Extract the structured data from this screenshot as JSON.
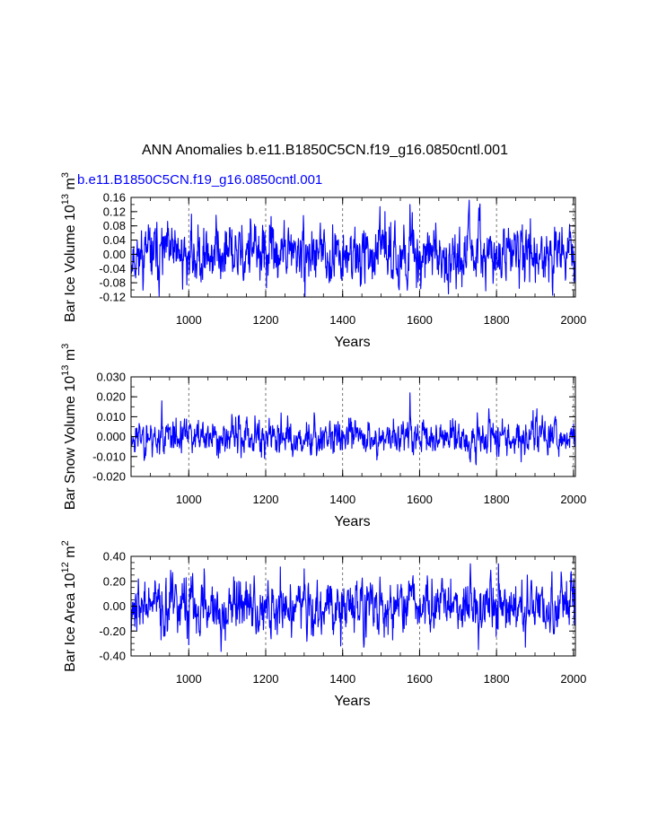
{
  "figure": {
    "title": "ANN Anomalies b.e11.B1850C5CN.f19_g16.0850cntl.001",
    "legend_label": "b.e11.B1850C5CN.f19_g16.0850cntl.001",
    "line_color": "#0000ff",
    "grid_color": "#000000"
  },
  "chart_data": [
    {
      "type": "line",
      "name": "ice-volume",
      "ylabel_main": "Bar Ice Volume 10",
      "ylabel_exp": "13",
      "ylabel_unit": " m",
      "ylabel_unit_exp": "3",
      "xlabel": "Years",
      "xlim": [
        850,
        2005
      ],
      "ylim": [
        -0.12,
        0.16
      ],
      "yticks": [
        -0.12,
        -0.08,
        -0.04,
        0.0,
        0.04,
        0.08,
        0.12,
        0.16
      ],
      "ytick_labels": [
        "-0.12",
        "-0.08",
        "-0.04",
        "0.00",
        "0.04",
        "0.08",
        "0.12",
        "0.16"
      ],
      "yminor_step": 0.02,
      "xticks": [
        1000,
        1200,
        1400,
        1600,
        1800,
        2000
      ],
      "xtick_labels": [
        "1000",
        "1200",
        "1400",
        "1600",
        "1800",
        "2000"
      ],
      "xminor_step": 50,
      "gridlines_x": [
        1000,
        1200,
        1400,
        1600,
        1800,
        2000
      ],
      "noise_sd": 0.04,
      "seed": 11,
      "spikes": [
        [
          1071,
          0.11
        ],
        [
          1160,
          0.1
        ],
        [
          1510,
          0.12
        ],
        [
          1575,
          0.14
        ],
        [
          1728,
          0.13
        ],
        [
          1888,
          0.1
        ]
      ]
    },
    {
      "type": "line",
      "name": "snow-volume",
      "ylabel_main": "Bar Snow Volume 10",
      "ylabel_exp": "13",
      "ylabel_unit": " m",
      "ylabel_unit_exp": "3",
      "xlabel": "Years",
      "xlim": [
        850,
        2005
      ],
      "ylim": [
        -0.02,
        0.03
      ],
      "yticks": [
        -0.02,
        -0.01,
        0.0,
        0.01,
        0.02,
        0.03
      ],
      "ytick_labels": [
        "-0.020",
        "-0.010",
        "0.000",
        "0.010",
        "0.020",
        "0.030"
      ],
      "yminor_step": 0.005,
      "xticks": [
        1000,
        1200,
        1400,
        1600,
        1800,
        2000
      ],
      "xtick_labels": [
        "1000",
        "1200",
        "1400",
        "1600",
        "1800",
        "2000"
      ],
      "xminor_step": 50,
      "gridlines_x": [
        1000,
        1200,
        1400,
        1600,
        1800,
        2000
      ],
      "noise_sd": 0.0045,
      "seed": 23,
      "spikes": [
        [
          930,
          0.018
        ],
        [
          1575,
          0.022
        ],
        [
          1780,
          0.014
        ],
        [
          1905,
          0.014
        ]
      ]
    },
    {
      "type": "line",
      "name": "ice-area",
      "ylabel_main": "Bar Ice Area 10",
      "ylabel_exp": "12",
      "ylabel_unit": " m",
      "ylabel_unit_exp": "2",
      "xlabel": "Years",
      "xlim": [
        850,
        2005
      ],
      "ylim": [
        -0.4,
        0.4
      ],
      "yticks": [
        -0.4,
        -0.2,
        0.0,
        0.2,
        0.4
      ],
      "ytick_labels": [
        "-0.40",
        "-0.20",
        "0.00",
        "0.20",
        "0.40"
      ],
      "yminor_step": 0.05,
      "xticks": [
        1000,
        1200,
        1400,
        1600,
        1800,
        2000
      ],
      "xtick_labels": [
        "1000",
        "1200",
        "1400",
        "1600",
        "1800",
        "2000"
      ],
      "xminor_step": 50,
      "gridlines_x": [
        1000,
        1200,
        1400,
        1600,
        1800,
        2000
      ],
      "noise_sd": 0.11,
      "seed": 37,
      "spikes": [
        [
          1040,
          0.3
        ],
        [
          1300,
          0.3
        ],
        [
          1805,
          0.34
        ],
        [
          1000,
          -0.31
        ],
        [
          1395,
          -0.32
        ],
        [
          1455,
          -0.33
        ],
        [
          1875,
          -0.33
        ]
      ]
    }
  ]
}
